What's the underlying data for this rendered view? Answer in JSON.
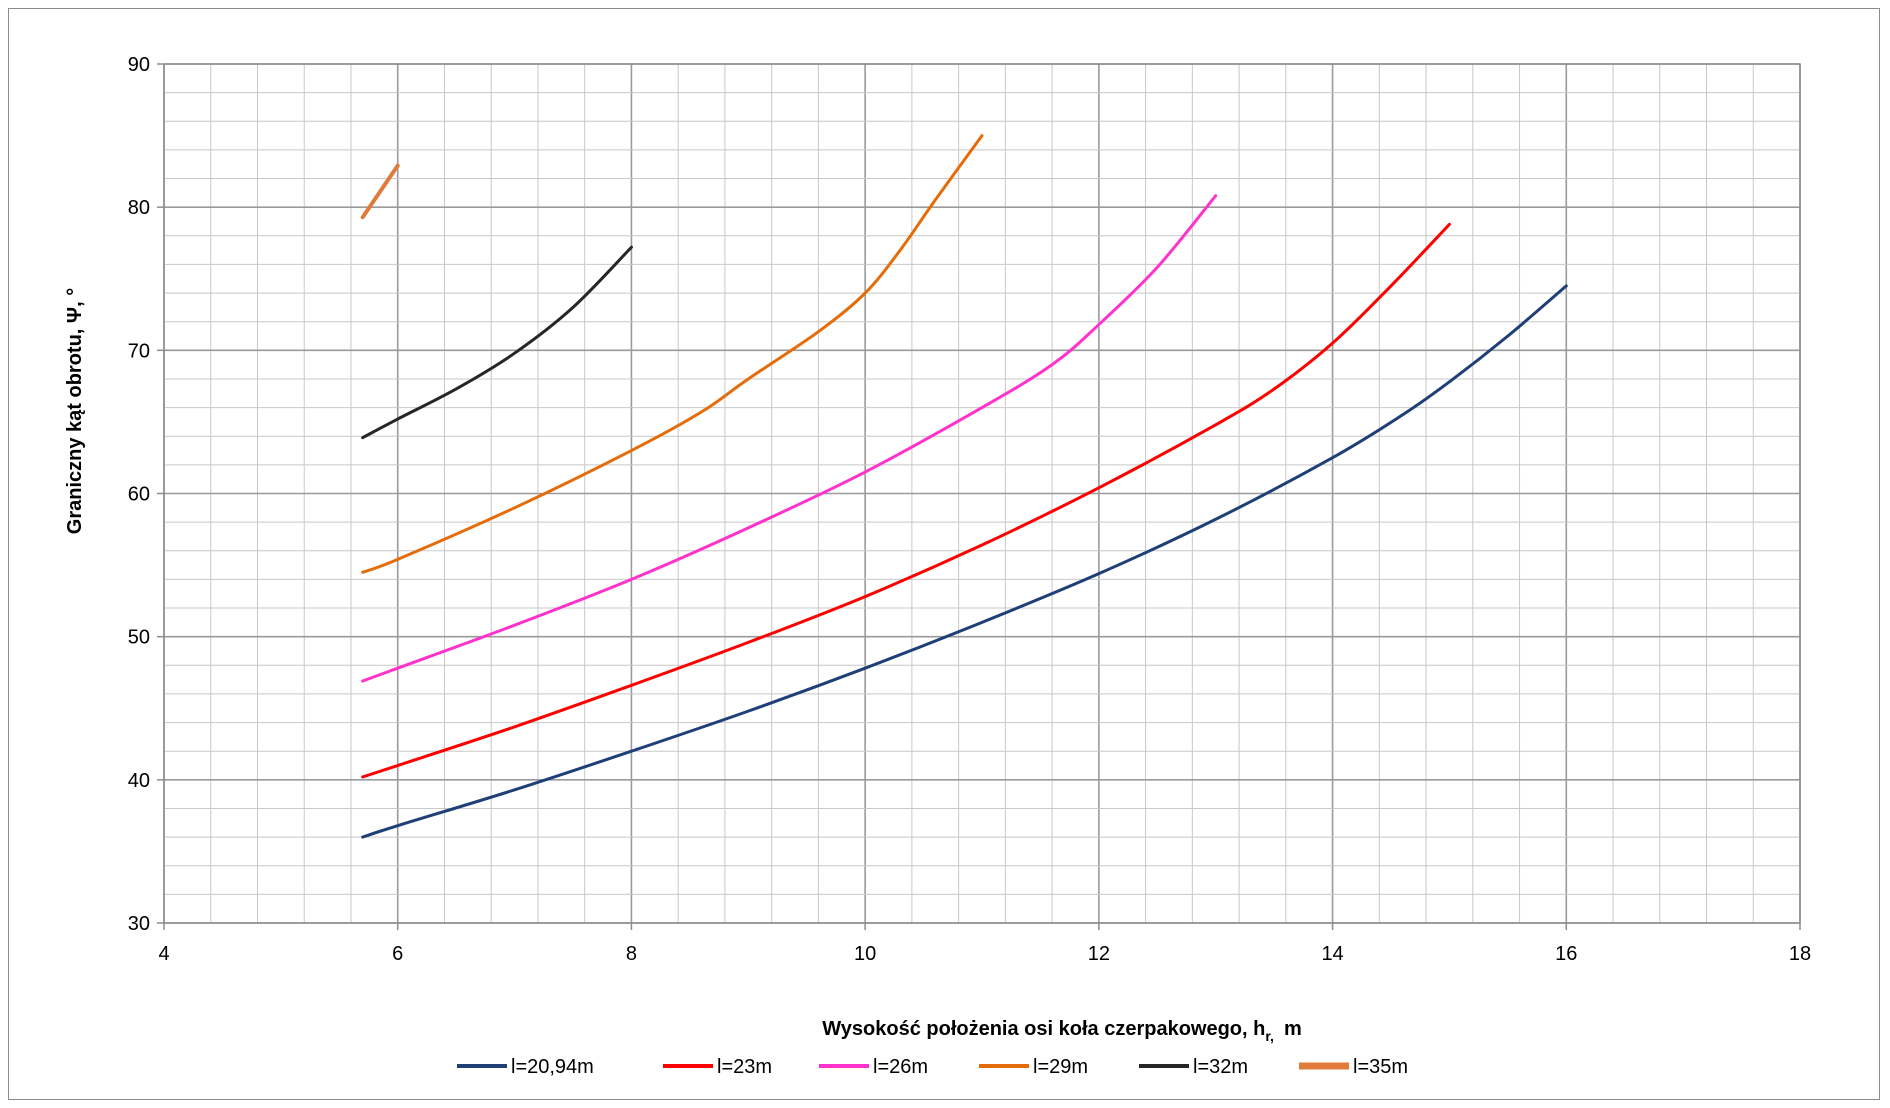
{
  "chart_data": {
    "type": "line",
    "xlabel": "Wysokość położenia osi koła czerpakowego, h",
    "xlabel_sub": "r,",
    "xlabel_unit": "m",
    "ylabel": "Graniczny kąt obrotu, Ψ, °",
    "xlim": [
      4,
      18
    ],
    "ylim": [
      30,
      90
    ],
    "x_major_ticks": [
      "4",
      "6",
      "8",
      "10",
      "12",
      "14",
      "16",
      "18"
    ],
    "y_major_ticks": [
      "30",
      "40",
      "50",
      "60",
      "70",
      "80",
      "90"
    ],
    "x_minor_step": 0.4,
    "y_minor_step": 2,
    "grid": true,
    "legend_position": "bottom",
    "series": [
      {
        "name": "l=20,94m",
        "color": "#1f3f77",
        "points": [
          [
            5.7,
            36.0
          ],
          [
            6.0,
            36.8
          ],
          [
            7.0,
            39.3
          ],
          [
            8.0,
            42.0
          ],
          [
            9.0,
            44.8
          ],
          [
            10.0,
            47.8
          ],
          [
            11.0,
            51.0
          ],
          [
            12.0,
            54.4
          ],
          [
            13.0,
            58.2
          ],
          [
            14.0,
            62.5
          ],
          [
            14.6,
            65.5
          ],
          [
            15.0,
            67.8
          ],
          [
            15.5,
            71.0
          ],
          [
            16.0,
            74.5
          ]
        ]
      },
      {
        "name": "l=23m",
        "color": "#ff0000",
        "points": [
          [
            5.7,
            40.2
          ],
          [
            6.0,
            41.0
          ],
          [
            7.0,
            43.7
          ],
          [
            8.0,
            46.6
          ],
          [
            9.0,
            49.6
          ],
          [
            10.0,
            52.8
          ],
          [
            11.0,
            56.4
          ],
          [
            12.0,
            60.4
          ],
          [
            13.0,
            64.8
          ],
          [
            13.5,
            67.3
          ],
          [
            14.0,
            70.5
          ],
          [
            14.5,
            74.5
          ],
          [
            15.0,
            78.8
          ]
        ]
      },
      {
        "name": "l=26m",
        "color": "#ff33cc",
        "points": [
          [
            5.7,
            46.9
          ],
          [
            6.0,
            47.8
          ],
          [
            7.0,
            50.8
          ],
          [
            8.0,
            54.0
          ],
          [
            9.0,
            57.6
          ],
          [
            10.0,
            61.5
          ],
          [
            11.0,
            66.0
          ],
          [
            11.6,
            69.0
          ],
          [
            12.0,
            71.8
          ],
          [
            12.5,
            75.8
          ],
          [
            13.0,
            80.8
          ]
        ]
      },
      {
        "name": "l=29m",
        "color": "#e46c0a",
        "points": [
          [
            5.7,
            54.5
          ],
          [
            6.0,
            55.4
          ],
          [
            7.0,
            59.0
          ],
          [
            8.0,
            63.0
          ],
          [
            8.6,
            65.7
          ],
          [
            9.0,
            68.0
          ],
          [
            9.6,
            71.3
          ],
          [
            10.0,
            74.0
          ],
          [
            10.3,
            77.0
          ],
          [
            10.6,
            80.5
          ],
          [
            11.0,
            85.0
          ]
        ]
      },
      {
        "name": "l=32m",
        "color": "#262626",
        "points": [
          [
            5.7,
            63.9
          ],
          [
            6.0,
            65.2
          ],
          [
            6.5,
            67.3
          ],
          [
            7.0,
            69.8
          ],
          [
            7.5,
            73.0
          ],
          [
            8.0,
            77.2
          ]
        ]
      },
      {
        "name": "l=35m",
        "color": "#e07b39",
        "points": [
          [
            5.7,
            79.3
          ],
          [
            6.0,
            82.9
          ]
        ]
      }
    ]
  }
}
